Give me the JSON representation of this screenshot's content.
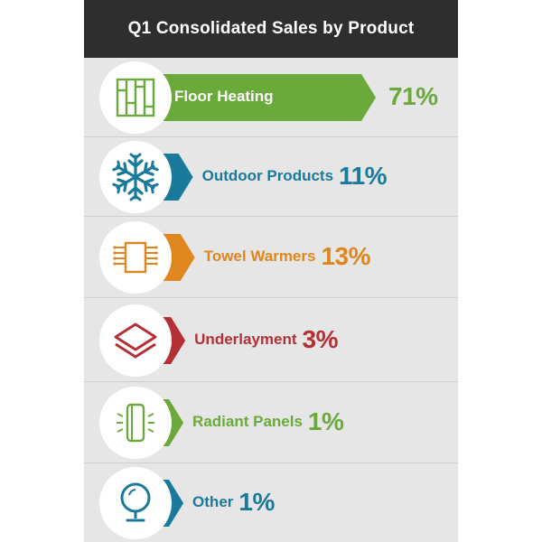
{
  "title": "Q1 Consolidated Sales by Product",
  "chart_data": {
    "type": "bar",
    "title": "Q1 Consolidated Sales by Product",
    "categories": [
      "Floor Heating",
      "Outdoor Products",
      "Towel Warmers",
      "Underlayment",
      "Radiant Panels",
      "Other"
    ],
    "values": [
      71,
      11,
      13,
      3,
      1,
      1
    ],
    "value_labels": [
      "71%",
      "11%",
      "13%",
      "3%",
      "1%",
      "1%"
    ],
    "unit": "%",
    "colors": [
      "#6aaa3b",
      "#1a7a9b",
      "#e0861f",
      "#b53035",
      "#6aaa3b",
      "#1a7a9b"
    ],
    "icons": [
      "floor-heating-icon",
      "snowflake-icon",
      "towel-warmer-icon",
      "underlayment-layers-icon",
      "radiant-panel-icon",
      "mirror-icon"
    ]
  }
}
